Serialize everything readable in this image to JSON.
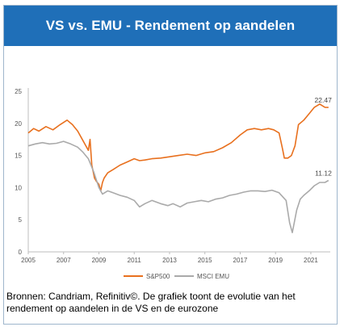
{
  "header": {
    "title": "VS vs. EMU - Rendement op aandelen"
  },
  "caption": "Bronnen: Candriam, Refinitiv©. De grafiek toont de evolutie van het rendement op aandelen in de VS en de eurozone",
  "colors": {
    "header_bg": "#1f6fb8",
    "sp500": "#e8701e",
    "msci": "#aaaaaa"
  },
  "chart_data": {
    "type": "line",
    "title": "",
    "xlabel": "",
    "ylabel": "",
    "xlim": [
      2005,
      2022.1
    ],
    "ylim": [
      0,
      25
    ],
    "x_ticks": [
      "2005",
      "2007",
      "2009",
      "2011",
      "2013",
      "2015",
      "2017",
      "2019",
      "2021"
    ],
    "y_ticks": [
      "0",
      "5",
      "10",
      "15",
      "20",
      "25"
    ],
    "grid": false,
    "legend": "bottom",
    "series": [
      {
        "name": "S&P500",
        "x": [
          2005.0,
          2005.3,
          2005.6,
          2006.0,
          2006.4,
          2006.8,
          2007.2,
          2007.5,
          2007.8,
          2008.0,
          2008.2,
          2008.4,
          2008.5,
          2008.6,
          2008.75,
          2008.85,
          2009.0,
          2009.1,
          2009.2,
          2009.3,
          2009.5,
          2009.8,
          2010.2,
          2010.6,
          2011.0,
          2011.3,
          2011.6,
          2012.0,
          2012.5,
          2013.0,
          2013.5,
          2014.0,
          2014.5,
          2015.0,
          2015.5,
          2016.0,
          2016.5,
          2017.0,
          2017.4,
          2017.8,
          2018.2,
          2018.6,
          2018.9,
          2019.2,
          2019.4,
          2019.5,
          2019.7,
          2019.9,
          2020.1,
          2020.3,
          2020.6,
          2020.9,
          2021.2,
          2021.5,
          2021.8,
          2022.0
        ],
        "y": [
          18.5,
          19.2,
          18.8,
          19.5,
          19.0,
          19.8,
          20.5,
          19.8,
          18.8,
          17.8,
          16.8,
          15.8,
          17.5,
          13.5,
          11.5,
          11.0,
          10.5,
          9.5,
          10.8,
          11.5,
          12.3,
          12.8,
          13.5,
          14.0,
          14.5,
          14.2,
          14.3,
          14.5,
          14.6,
          14.8,
          15.0,
          15.2,
          15.0,
          15.4,
          15.6,
          16.2,
          17.0,
          18.2,
          19.0,
          19.2,
          19.0,
          19.2,
          19.0,
          18.5,
          16.0,
          14.6,
          14.6,
          15.0,
          16.5,
          19.8,
          20.5,
          21.5,
          22.5,
          23.0,
          22.5,
          22.47
        ]
      },
      {
        "name": "MSCI EMU",
        "x": [
          2005.0,
          2005.4,
          2005.8,
          2006.2,
          2006.6,
          2007.0,
          2007.4,
          2007.8,
          2008.1,
          2008.4,
          2008.7,
          2009.0,
          2009.2,
          2009.5,
          2009.8,
          2010.2,
          2010.6,
          2011.0,
          2011.3,
          2011.6,
          2012.0,
          2012.5,
          2012.9,
          2013.2,
          2013.6,
          2014.0,
          2014.4,
          2014.8,
          2015.2,
          2015.6,
          2016.0,
          2016.4,
          2016.8,
          2017.2,
          2017.6,
          2018.0,
          2018.4,
          2018.8,
          2019.2,
          2019.6,
          2019.8,
          2019.95,
          2020.2,
          2020.4,
          2020.6,
          2020.9,
          2021.2,
          2021.5,
          2021.8,
          2022.0
        ],
        "y": [
          16.5,
          16.8,
          17.0,
          16.8,
          16.9,
          17.2,
          16.8,
          16.3,
          15.5,
          14.5,
          12.5,
          10.0,
          9.0,
          9.5,
          9.2,
          8.8,
          8.5,
          8.0,
          7.0,
          7.5,
          8.0,
          7.5,
          7.2,
          7.5,
          7.0,
          7.6,
          7.8,
          8.0,
          7.8,
          8.2,
          8.4,
          8.8,
          9.0,
          9.3,
          9.5,
          9.5,
          9.4,
          9.6,
          9.2,
          8.0,
          4.5,
          3.0,
          6.5,
          8.2,
          8.8,
          9.5,
          10.3,
          10.8,
          10.8,
          11.12
        ]
      }
    ],
    "end_labels": [
      "22.47",
      "11.12"
    ]
  }
}
